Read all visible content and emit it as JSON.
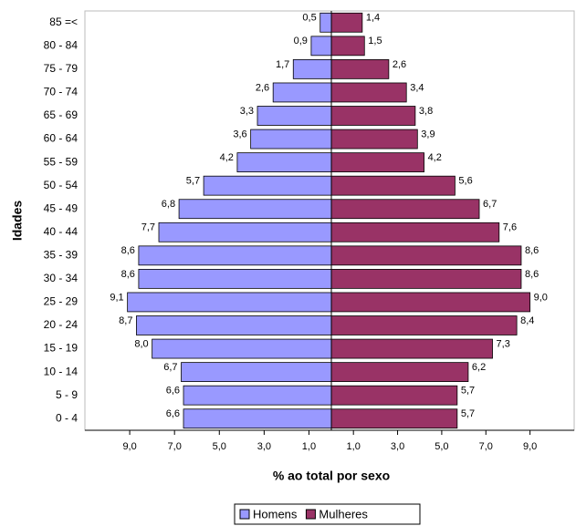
{
  "chart_data": {
    "type": "pyramid",
    "xlabel": "% ao total por sexo",
    "ylabel": "Idades",
    "categories": [
      "85 =<",
      "80 - 84",
      "75 - 79",
      "70 - 74",
      "65 - 69",
      "60 - 64",
      "55 - 59",
      "50 - 54",
      "45 - 49",
      "40 - 44",
      "35 - 39",
      "30 - 34",
      "25 - 29",
      "20 - 24",
      "15 - 19",
      "10 - 14",
      "5 - 9",
      "0 - 4"
    ],
    "series": [
      {
        "name": "Homens",
        "color": "#9999ff",
        "side": "left",
        "values": [
          0.5,
          0.9,
          1.7,
          2.6,
          3.3,
          3.6,
          4.2,
          5.7,
          6.8,
          7.7,
          8.6,
          8.6,
          9.1,
          8.7,
          8.0,
          6.7,
          6.6,
          6.6
        ],
        "value_labels": [
          "0,5",
          "0,9",
          "1,7",
          "2,6",
          "3,3",
          "3,6",
          "4,2",
          "5,7",
          "6,8",
          "7,7",
          "8,6",
          "8,6",
          "9,1",
          "8,7",
          "8,0",
          "6,7",
          "6,6",
          "6,6"
        ]
      },
      {
        "name": "Mulheres",
        "color": "#993366",
        "side": "right",
        "values": [
          1.4,
          1.5,
          2.6,
          3.4,
          3.8,
          3.9,
          4.2,
          5.6,
          6.7,
          7.6,
          8.6,
          8.6,
          9.0,
          8.4,
          7.3,
          6.2,
          5.7,
          5.7
        ],
        "value_labels": [
          "1,4",
          "1,5",
          "2,6",
          "3,4",
          "3,8",
          "3,9",
          "4,2",
          "5,6",
          "6,7",
          "7,6",
          "8,6",
          "8,6",
          "9,0",
          "8,4",
          "7,3",
          "6,2",
          "5,7",
          "5,7"
        ]
      }
    ],
    "xlim_left": [
      11,
      0
    ],
    "xticks_left": [
      {
        "value": 9,
        "label": "9,0"
      },
      {
        "value": 7,
        "label": "7,0"
      },
      {
        "value": 5,
        "label": "5,0"
      },
      {
        "value": 3,
        "label": "3,0"
      },
      {
        "value": 1,
        "label": "1,0"
      }
    ],
    "xlim_right": [
      0,
      11
    ],
    "xticks_right": [
      {
        "value": 1,
        "label": "1,0"
      },
      {
        "value": 3,
        "label": "3,0"
      },
      {
        "value": 5,
        "label": "5,0"
      },
      {
        "value": 7,
        "label": "7,0"
      },
      {
        "value": 9,
        "label": "9,0"
      }
    ],
    "legend": "bottom"
  }
}
